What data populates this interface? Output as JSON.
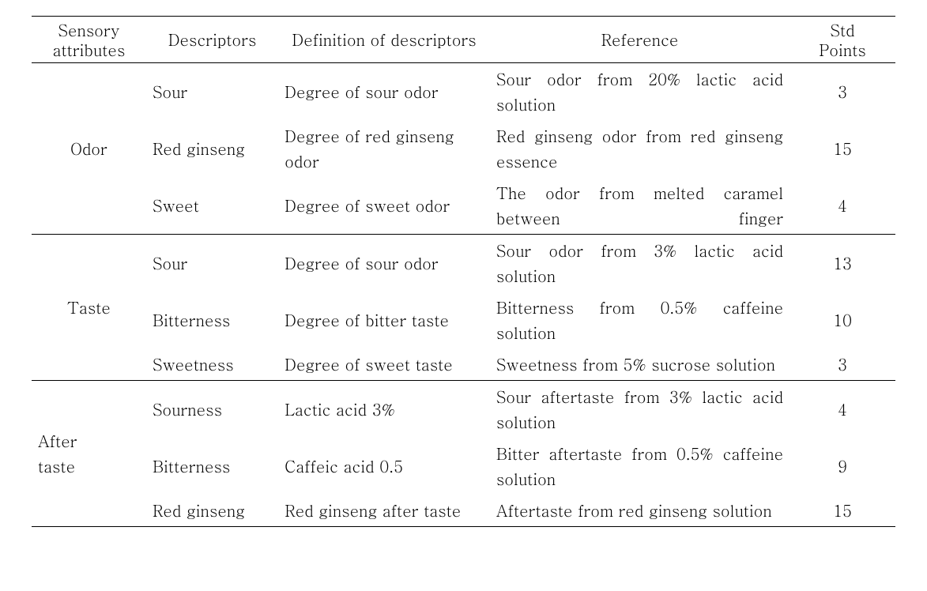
{
  "headers": {
    "attr_l1": "Sensory",
    "attr_l2": "attributes",
    "desc": "Descriptors",
    "def": "Definition of descriptors",
    "ref": "Reference",
    "pts_l1": "Std",
    "pts_l2": "Points"
  },
  "groups": [
    {
      "attribute_lines": [
        "Odor"
      ],
      "rows": [
        {
          "descriptor": "Sour",
          "definition": "Degree of sour odor",
          "reference": "Sour odor from 20% lactic acid solution",
          "reference_justify": false,
          "points": "3"
        },
        {
          "descriptor": "Red ginseng",
          "definition": "Degree of red ginseng odor",
          "reference": "Red ginseng odor from red ginseng essence",
          "reference_justify": false,
          "points": "15"
        },
        {
          "descriptor": "Sweet",
          "definition": "Degree of sweet odor",
          "reference": "The odor from melted caramel between finger",
          "reference_justify": true,
          "points": "4"
        }
      ]
    },
    {
      "attribute_lines": [
        "Taste"
      ],
      "rows": [
        {
          "descriptor": "Sour",
          "definition": "Degree of sour odor",
          "reference": "Sour odor from 3% lactic acid solution",
          "reference_justify": false,
          "points": "13"
        },
        {
          "descriptor": "Bitterness",
          "definition": "Degree of bitter taste",
          "reference": "Bitterness from 0.5% caffeine solution",
          "reference_justify": true,
          "points": "10"
        },
        {
          "descriptor": "Sweetness",
          "definition": "Degree of sweet taste",
          "reference": "Sweetness from 5% sucrose solution",
          "reference_justify": false,
          "points": "3"
        }
      ]
    },
    {
      "attribute_lines": [
        "After",
        "taste"
      ],
      "rows": [
        {
          "descriptor": "Sourness",
          "definition": "Lactic acid 3%",
          "reference": "Sour aftertaste from 3% lactic acid solution",
          "reference_justify": false,
          "points": "4"
        },
        {
          "descriptor": "Bitterness",
          "definition": "Caffeic acid 0.5",
          "reference": "Bitter aftertaste from 0.5% caffeine solution",
          "reference_justify": true,
          "points": "9"
        },
        {
          "descriptor": "Red ginseng",
          "definition": "Red ginseng after taste",
          "reference": "Aftertaste from red ginseng solution",
          "reference_justify": false,
          "points": "15"
        }
      ]
    }
  ]
}
